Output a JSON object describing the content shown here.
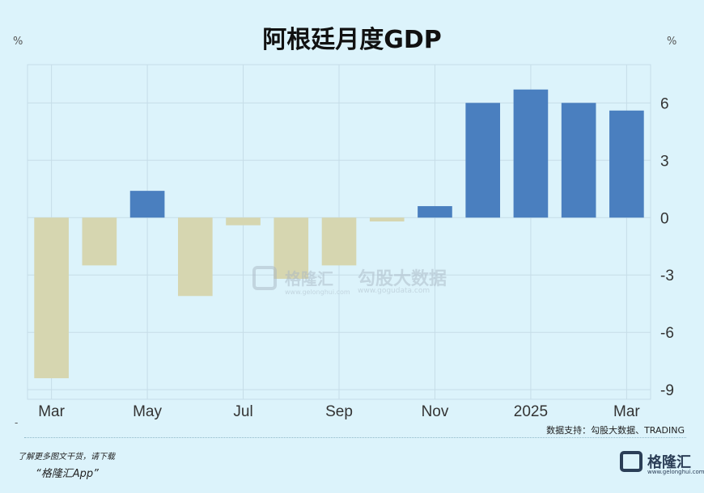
{
  "title": "阿根廷月度GDP",
  "units": {
    "left": "%",
    "right": "%"
  },
  "source": "数据支持：勾股大数据、TRADING",
  "footer": {
    "tip": "了解更多图文干货，请下载",
    "app": "“格隆汇App”",
    "logo_text": "格隆汇",
    "logo_sub": "www.gelonghui.com"
  },
  "watermark": {
    "brand": "格隆汇",
    "brand_url": "www.gelonghui.com",
    "partner": "勾股大数据",
    "partner_url": "www.gogudata.com"
  },
  "colors": {
    "positive": "#4a7fbf",
    "negative": "#d6d6b0",
    "background": "#dcf3fb",
    "grid": "#c6dde8"
  },
  "chart_data": {
    "type": "bar",
    "title": "阿根廷月度GDP",
    "xlabel": "",
    "ylabel": "%",
    "y_axis_side": "right",
    "ylim": [
      -9.5,
      8
    ],
    "yticks": [
      6,
      3,
      0,
      -3,
      -6,
      -9
    ],
    "categories": [
      "2024-03",
      "2024-04",
      "2024-05",
      "2024-06",
      "2024-07",
      "2024-08",
      "2024-09",
      "2024-10",
      "2024-11",
      "2024-12",
      "2025-01",
      "2025-02",
      "2025-03"
    ],
    "values": [
      -8.4,
      -2.5,
      1.4,
      -4.1,
      -0.4,
      -3.2,
      -2.5,
      -0.2,
      0.6,
      6.0,
      6.7,
      6.0,
      5.6
    ],
    "xtick_labels": [
      {
        "index": 0,
        "label": "Mar"
      },
      {
        "index": 2,
        "label": "May"
      },
      {
        "index": 4,
        "label": "Jul"
      },
      {
        "index": 6,
        "label": "Sep"
      },
      {
        "index": 8,
        "label": "Nov"
      },
      {
        "index": 10,
        "label": "2025"
      },
      {
        "index": 12,
        "label": "Mar"
      }
    ],
    "grid": true
  }
}
